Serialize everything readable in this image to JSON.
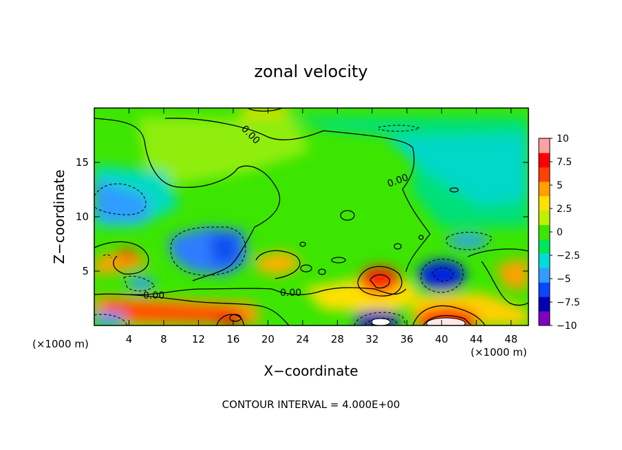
{
  "chart_data": {
    "type": "heatmap",
    "title": "zonal velocity",
    "xlabel": "X−coordinate",
    "ylabel": "Z−coordinate",
    "x_unit_left": "(×1000 m)",
    "x_unit_right": "(×1000 m)",
    "footer": "CONTOUR INTERVAL = 4.000E+00",
    "xlim": [
      0,
      50
    ],
    "ylim": [
      0,
      20
    ],
    "x_ticks": [
      4,
      8,
      12,
      16,
      20,
      24,
      28,
      32,
      36,
      40,
      44,
      48
    ],
    "x_tick_labels": [
      "4",
      "8",
      "12",
      "16",
      "20",
      "24",
      "28",
      "32",
      "36",
      "40",
      "44",
      "48"
    ],
    "y_ticks": [
      5,
      10,
      15
    ],
    "y_tick_labels": [
      "5",
      "10",
      "15"
    ],
    "colorbar": {
      "range": [
        -10,
        10
      ],
      "ticks": [
        10,
        7.5,
        5,
        2.5,
        0,
        -2.5,
        -5,
        -7.5,
        -10
      ],
      "tick_labels": [
        "10",
        "7.5",
        "5",
        "2.5",
        "0",
        "−2.5",
        "−5",
        "−7.5",
        "−10"
      ],
      "colors": [
        "#7f00bf",
        "#0000b4",
        "#0a46ff",
        "#2f9dff",
        "#00dcdc",
        "#00e65a",
        "#3ce600",
        "#bef000",
        "#ffe000",
        "#ffa000",
        "#ff4000",
        "#ff0000",
        "#ffa0a0"
      ]
    },
    "contour_labels": [
      "0.00",
      "0.00",
      "0.00",
      "0.00"
    ],
    "features": [
      {
        "x": 32.5,
        "z": 4.0,
        "value": 8
      },
      {
        "x": 33.0,
        "z": 1.0,
        "value": -9
      },
      {
        "x": 39.5,
        "z": 4.5,
        "value": -8
      },
      {
        "x": 40.0,
        "z": 0.6,
        "value": 11
      },
      {
        "x": 16.0,
        "z": 0.9,
        "value": 8
      },
      {
        "x": 11.0,
        "z": 1.6,
        "value": 6
      },
      {
        "x": 15.5,
        "z": 7.5,
        "value": -5.5
      },
      {
        "x": 10.0,
        "z": 7.5,
        "value": -5
      },
      {
        "x": 2.5,
        "z": 11.0,
        "value": -4
      },
      {
        "x": 47.0,
        "z": 4.5,
        "value": 6
      },
      {
        "x": 22.0,
        "z": 5.5,
        "value": 5
      },
      {
        "x": 4.5,
        "z": 6.3,
        "value": 6
      },
      {
        "x": 1.5,
        "z": 0.3,
        "value": -6
      },
      {
        "x": 19.0,
        "z": 19.5,
        "value": 4
      },
      {
        "x": 36.0,
        "z": 18.5,
        "value": -3
      },
      {
        "x": 46.0,
        "z": 14.0,
        "value": -2.5
      }
    ]
  }
}
